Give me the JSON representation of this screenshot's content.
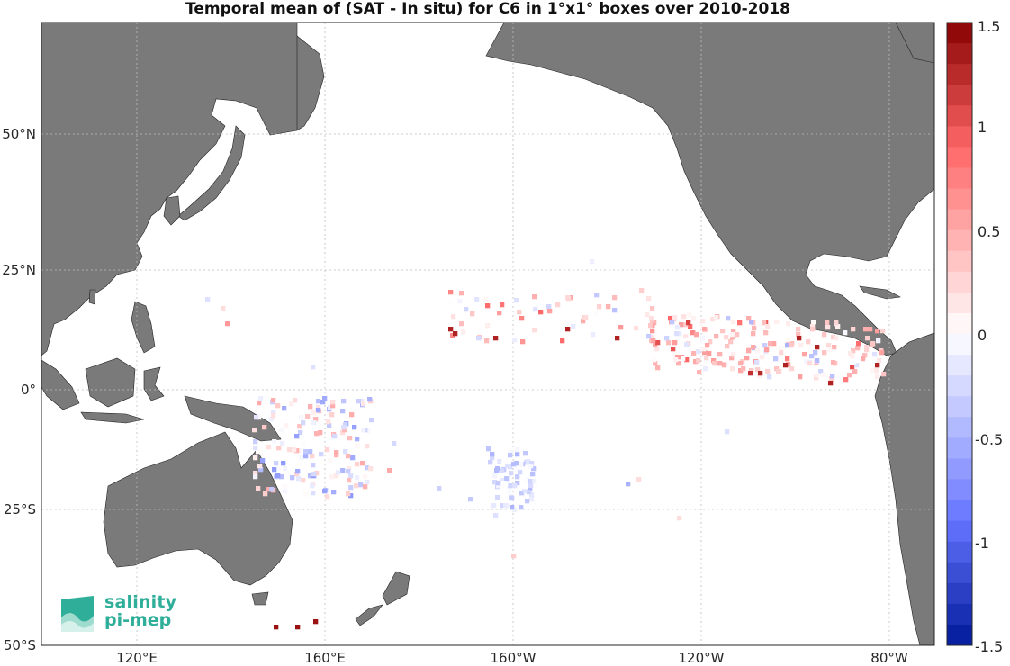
{
  "title": "Temporal mean of (SAT - In situ) for C6 in 1°x1° boxes over 2010-2018",
  "map": {
    "lon_labels": [
      "120°E",
      "160°E",
      "160°W",
      "120°W",
      "80°W"
    ],
    "lat_labels": [
      "50°N",
      "25°N",
      "0°",
      "25°S",
      "50°S"
    ],
    "land_color": "#7a7a7a",
    "grid": true
  },
  "colorbar": {
    "tick_labels": [
      "1.5",
      "1",
      "0.5",
      "0",
      "-0.5",
      "-1",
      "-1.5"
    ],
    "min": -1.5,
    "max": 1.5
  },
  "logo": {
    "line1": "salinity",
    "line2": "pi-mep"
  }
}
